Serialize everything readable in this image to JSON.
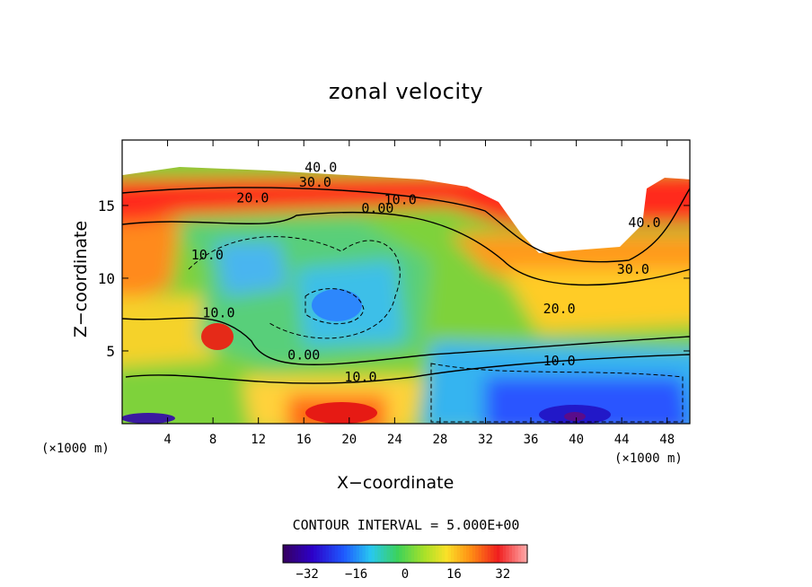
{
  "chart_data": {
    "type": "heatmap",
    "title": "zonal velocity",
    "xlabel": "X−coordinate",
    "ylabel": "Z−coordinate",
    "x_unit_label_left": "(×1000 m)",
    "x_unit_label_right": "(×1000 m)",
    "xlim": [
      0,
      50
    ],
    "ylim": [
      0,
      19.5
    ],
    "xticks": [
      4,
      8,
      12,
      16,
      20,
      24,
      28,
      32,
      36,
      40,
      44,
      48
    ],
    "xtick_labels": [
      "4",
      "8",
      "12",
      "16",
      "20",
      "24",
      "28",
      "32",
      "36",
      "40",
      "44",
      "48"
    ],
    "yticks": [
      5,
      10,
      15
    ],
    "ytick_labels": [
      "5",
      "10",
      "15"
    ],
    "contour_interval_text": "CONTOUR INTERVAL = 5.000E+00",
    "contour_labels": [
      {
        "text": "40.0",
        "x": 17.5,
        "z": 17.3
      },
      {
        "text": "30.0",
        "x": 17.0,
        "z": 16.3
      },
      {
        "text": "20.0",
        "x": 11.5,
        "z": 15.2
      },
      {
        "text": "10.0",
        "x": 24.5,
        "z": 15.1
      },
      {
        "text": "0.00",
        "x": 22.5,
        "z": 14.5
      },
      {
        "text": "10.0",
        "x": 7.5,
        "z": 11.3
      },
      {
        "text": "10.0",
        "x": 8.5,
        "z": 7.3
      },
      {
        "text": "0.00",
        "x": 16.0,
        "z": 4.4
      },
      {
        "text": "10.0",
        "x": 21.0,
        "z": 2.9
      },
      {
        "text": "10.0",
        "x": 38.5,
        "z": 4.0
      },
      {
        "text": "20.0",
        "x": 38.5,
        "z": 7.6
      },
      {
        "text": "30.0",
        "x": 45.0,
        "z": 10.3
      },
      {
        "text": "40.0",
        "x": 46.0,
        "z": 13.5
      }
    ],
    "colorbar": {
      "ticks": [
        -32,
        -16,
        0,
        16,
        32
      ],
      "tick_labels": [
        "−32",
        "−16",
        "0",
        "16",
        "32"
      ],
      "range": [
        -40,
        40
      ]
    }
  }
}
